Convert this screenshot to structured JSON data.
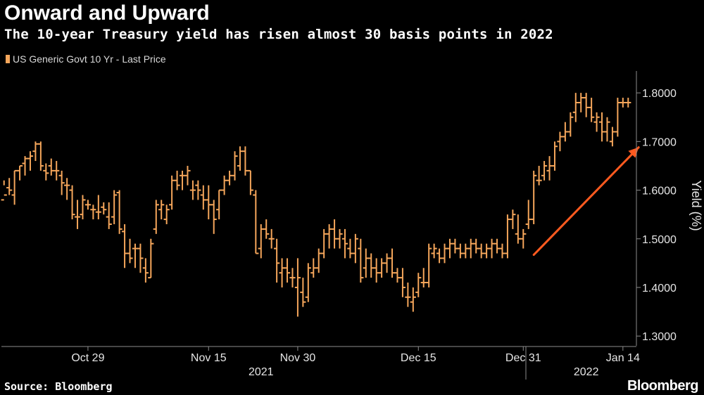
{
  "header": {
    "title": "Onward and Upward",
    "subtitle": "The 10-year Treasury yield has risen almost 30 basis points in 2022"
  },
  "footer": {
    "source": "Source: Bloomberg",
    "brand": "Bloomberg"
  },
  "colors": {
    "series": "#f5a65b",
    "arrow": "#ff5a1f",
    "background": "#000000",
    "axis": "#8c8c8c"
  },
  "chart_data": {
    "type": "ohlc",
    "legend": [
      "US Generic Govt 10 Yr - Last Price"
    ],
    "legend_position": "top-left",
    "ylabel": "Yield (%)",
    "ylim": [
      1.28,
      1.845
    ],
    "yticks": [
      "1.8000",
      "1.7000",
      "1.6000",
      "1.5000",
      "1.4000",
      "1.3000"
    ],
    "y_axis_side": "right",
    "grid": false,
    "xticks": [
      {
        "label": "Oct 29",
        "index": 16
      },
      {
        "label": "Nov 15",
        "index": 39
      },
      {
        "label": "Nov 30",
        "index": 56
      },
      {
        "label": "Dec 15",
        "index": 79
      },
      {
        "label": "Dec 31",
        "index": 99
      },
      {
        "label": "Jan 14",
        "index": 118
      }
    ],
    "year_labels": [
      {
        "label": "2021",
        "index": 49
      },
      {
        "label": "2022",
        "index": 111
      }
    ],
    "year_divider_index": 99.5,
    "annotation": {
      "type": "arrow",
      "from": {
        "index": 101,
        "value": 1.467
      },
      "to": {
        "index": 121,
        "value": 1.688
      }
    },
    "bars": [
      [
        1.58,
        1.62,
        1.61,
        1.59
      ],
      [
        1.605,
        1.625,
        1.59,
        1.6
      ],
      [
        1.59,
        1.64,
        1.57,
        1.64
      ],
      [
        1.64,
        1.65,
        1.62,
        1.65
      ],
      [
        1.655,
        1.67,
        1.63,
        1.665
      ],
      [
        1.665,
        1.68,
        1.64,
        1.67
      ],
      [
        1.68,
        1.7,
        1.66,
        1.695
      ],
      [
        1.695,
        1.7,
        1.64,
        1.65
      ],
      [
        1.64,
        1.655,
        1.62,
        1.635
      ],
      [
        1.65,
        1.665,
        1.63,
        1.64
      ],
      [
        1.64,
        1.66,
        1.62,
        1.64
      ],
      [
        1.63,
        1.64,
        1.59,
        1.615
      ],
      [
        1.61,
        1.625,
        1.58,
        1.61
      ],
      [
        1.6,
        1.61,
        1.54,
        1.55
      ],
      [
        1.545,
        1.58,
        1.52,
        1.545
      ],
      [
        1.55,
        1.59,
        1.54,
        1.58
      ],
      [
        1.57,
        1.58,
        1.56,
        1.57
      ],
      [
        1.56,
        1.57,
        1.54,
        1.56
      ],
      [
        1.555,
        1.59,
        1.54,
        1.555
      ],
      [
        1.565,
        1.575,
        1.55,
        1.56
      ],
      [
        1.545,
        1.575,
        1.52,
        1.53
      ],
      [
        1.545,
        1.6,
        1.53,
        1.59
      ],
      [
        1.595,
        1.6,
        1.51,
        1.52
      ],
      [
        1.515,
        1.53,
        1.44,
        1.47
      ],
      [
        1.47,
        1.5,
        1.45,
        1.46
      ],
      [
        1.48,
        1.49,
        1.44,
        1.48
      ],
      [
        1.48,
        1.49,
        1.43,
        1.46
      ],
      [
        1.44,
        1.46,
        1.41,
        1.43
      ],
      [
        1.42,
        1.5,
        1.42,
        1.49
      ],
      [
        1.52,
        1.58,
        1.51,
        1.57
      ],
      [
        1.56,
        1.58,
        1.54,
        1.57
      ],
      [
        1.54,
        1.57,
        1.53,
        1.56
      ],
      [
        1.57,
        1.63,
        1.56,
        1.62
      ],
      [
        1.62,
        1.64,
        1.6,
        1.61
      ],
      [
        1.63,
        1.64,
        1.6,
        1.63
      ],
      [
        1.63,
        1.65,
        1.61,
        1.64
      ],
      [
        1.6,
        1.62,
        1.58,
        1.6
      ],
      [
        1.61,
        1.62,
        1.58,
        1.6
      ],
      [
        1.59,
        1.61,
        1.56,
        1.58
      ],
      [
        1.58,
        1.61,
        1.54,
        1.57
      ],
      [
        1.57,
        1.58,
        1.51,
        1.54
      ],
      [
        1.56,
        1.6,
        1.54,
        1.6
      ],
      [
        1.6,
        1.63,
        1.59,
        1.62
      ],
      [
        1.62,
        1.64,
        1.61,
        1.63
      ],
      [
        1.63,
        1.68,
        1.62,
        1.67
      ],
      [
        1.65,
        1.69,
        1.64,
        1.68
      ],
      [
        1.68,
        1.69,
        1.63,
        1.64
      ],
      [
        1.64,
        1.64,
        1.59,
        1.6
      ],
      [
        1.59,
        1.6,
        1.47,
        1.47
      ],
      [
        1.48,
        1.53,
        1.46,
        1.52
      ],
      [
        1.52,
        1.54,
        1.5,
        1.51
      ],
      [
        1.5,
        1.52,
        1.48,
        1.5
      ],
      [
        1.48,
        1.5,
        1.41,
        1.45
      ],
      [
        1.43,
        1.46,
        1.4,
        1.44
      ],
      [
        1.44,
        1.46,
        1.41,
        1.43
      ],
      [
        1.42,
        1.44,
        1.4,
        1.42
      ],
      [
        1.4,
        1.46,
        1.34,
        1.42
      ],
      [
        1.39,
        1.42,
        1.36,
        1.37
      ],
      [
        1.38,
        1.45,
        1.37,
        1.44
      ],
      [
        1.43,
        1.46,
        1.42,
        1.44
      ],
      [
        1.44,
        1.48,
        1.43,
        1.47
      ],
      [
        1.47,
        1.52,
        1.46,
        1.51
      ],
      [
        1.51,
        1.53,
        1.48,
        1.52
      ],
      [
        1.52,
        1.54,
        1.48,
        1.5
      ],
      [
        1.5,
        1.52,
        1.48,
        1.51
      ],
      [
        1.5,
        1.52,
        1.46,
        1.49
      ],
      [
        1.48,
        1.5,
        1.46,
        1.47
      ],
      [
        1.47,
        1.51,
        1.45,
        1.5
      ],
      [
        1.48,
        1.5,
        1.41,
        1.42
      ],
      [
        1.44,
        1.48,
        1.42,
        1.46
      ],
      [
        1.46,
        1.47,
        1.42,
        1.44
      ],
      [
        1.44,
        1.46,
        1.41,
        1.43
      ],
      [
        1.43,
        1.46,
        1.42,
        1.45
      ],
      [
        1.45,
        1.47,
        1.43,
        1.46
      ],
      [
        1.46,
        1.48,
        1.42,
        1.43
      ],
      [
        1.43,
        1.44,
        1.41,
        1.42
      ],
      [
        1.42,
        1.44,
        1.38,
        1.4
      ],
      [
        1.38,
        1.41,
        1.36,
        1.38
      ],
      [
        1.37,
        1.4,
        1.35,
        1.38
      ],
      [
        1.39,
        1.43,
        1.38,
        1.42
      ],
      [
        1.41,
        1.44,
        1.4,
        1.41
      ],
      [
        1.41,
        1.49,
        1.4,
        1.48
      ],
      [
        1.47,
        1.49,
        1.46,
        1.48
      ],
      [
        1.47,
        1.48,
        1.45,
        1.46
      ],
      [
        1.46,
        1.49,
        1.45,
        1.48
      ],
      [
        1.48,
        1.5,
        1.46,
        1.49
      ],
      [
        1.49,
        1.5,
        1.47,
        1.48
      ],
      [
        1.48,
        1.49,
        1.46,
        1.47
      ],
      [
        1.47,
        1.49,
        1.46,
        1.48
      ],
      [
        1.48,
        1.5,
        1.46,
        1.49
      ],
      [
        1.49,
        1.5,
        1.47,
        1.48
      ],
      [
        1.48,
        1.49,
        1.46,
        1.47
      ],
      [
        1.47,
        1.49,
        1.46,
        1.48
      ],
      [
        1.48,
        1.5,
        1.46,
        1.49
      ],
      [
        1.49,
        1.5,
        1.47,
        1.48
      ],
      [
        1.48,
        1.49,
        1.46,
        1.47
      ],
      [
        1.47,
        1.55,
        1.46,
        1.54
      ],
      [
        1.54,
        1.56,
        1.52,
        1.55
      ],
      [
        1.51,
        1.55,
        1.49,
        1.5
      ],
      [
        1.5,
        1.52,
        1.48,
        1.51
      ],
      [
        1.53,
        1.58,
        1.52,
        1.54
      ],
      [
        1.54,
        1.64,
        1.53,
        1.63
      ],
      [
        1.62,
        1.65,
        1.61,
        1.62
      ],
      [
        1.63,
        1.66,
        1.62,
        1.65
      ],
      [
        1.64,
        1.67,
        1.62,
        1.65
      ],
      [
        1.65,
        1.7,
        1.64,
        1.69
      ],
      [
        1.7,
        1.72,
        1.68,
        1.71
      ],
      [
        1.71,
        1.74,
        1.7,
        1.72
      ],
      [
        1.72,
        1.76,
        1.71,
        1.75
      ],
      [
        1.76,
        1.8,
        1.74,
        1.78
      ],
      [
        1.78,
        1.8,
        1.76,
        1.79
      ],
      [
        1.79,
        1.8,
        1.75,
        1.77
      ],
      [
        1.77,
        1.79,
        1.74,
        1.75
      ],
      [
        1.74,
        1.76,
        1.72,
        1.75
      ],
      [
        1.74,
        1.76,
        1.7,
        1.72
      ],
      [
        1.72,
        1.75,
        1.7,
        1.74
      ],
      [
        1.7,
        1.73,
        1.69,
        1.72
      ],
      [
        1.72,
        1.79,
        1.71,
        1.78
      ],
      [
        1.78,
        1.79,
        1.77,
        1.78
      ],
      [
        1.78,
        1.79,
        1.77,
        1.78
      ]
    ]
  }
}
